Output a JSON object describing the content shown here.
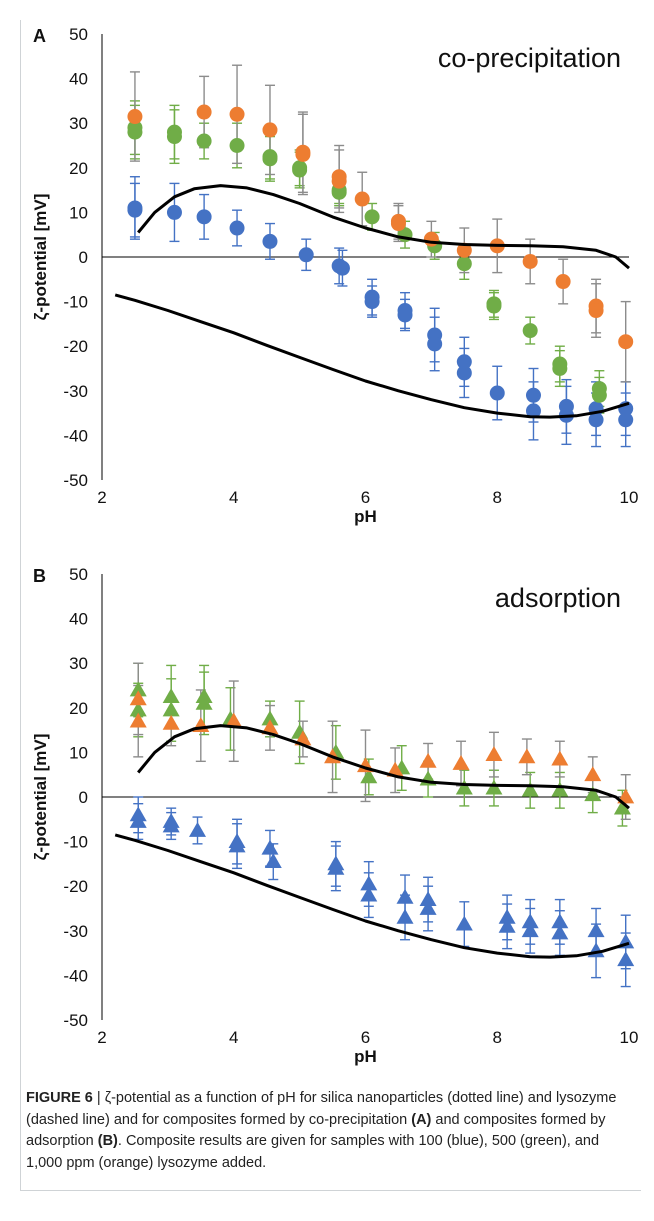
{
  "caption": {
    "lead": "FIGURE 6",
    "sep": " | ",
    "t1": "ζ-potential as a function of pH for silica nanoparticles (dotted line) and lysozyme (dashed line) and for composites formed by co-precipitation ",
    "ref_a": "(A)",
    "t2": " and composites formed by adsorption ",
    "ref_b": "(B)",
    "t3": ". Composite results are given for samples with 100 (blue), 500 (green), and 1,000 ppm (orange) lysozyme added."
  },
  "chart_data": [
    {
      "type": "scatter",
      "panel_label": "A",
      "title": "co-precipitation",
      "xlabel": "pH",
      "ylabel": "ζ-potential [mV]",
      "xlim": [
        2,
        10
      ],
      "ylim": [
        -50,
        50
      ],
      "xticks": [
        "2",
        "4",
        "6",
        "8",
        "10"
      ],
      "yticks": [
        "50",
        "40",
        "30",
        "20",
        "10",
        "0",
        "-10",
        "-20",
        "-30",
        "-40",
        "-50"
      ],
      "grid": false,
      "marker": "circle",
      "series": [
        {
          "color": "#4472c4",
          "points": [
            [
              2.5,
              11
            ],
            [
              2.5,
              10.5
            ],
            [
              3.1,
              10
            ],
            [
              3.55,
              9
            ],
            [
              4.05,
              6.5
            ],
            [
              4.55,
              3.5
            ],
            [
              5.1,
              0.5
            ],
            [
              5.6,
              -2
            ],
            [
              5.65,
              -2.5
            ],
            [
              6.1,
              -9
            ],
            [
              6.1,
              -10
            ],
            [
              6.6,
              -12
            ],
            [
              6.6,
              -13
            ],
            [
              7.05,
              -17.5
            ],
            [
              7.05,
              -19.5
            ],
            [
              7.5,
              -23.5
            ],
            [
              7.5,
              -26
            ],
            [
              8.0,
              -30.5
            ],
            [
              8.55,
              -31
            ],
            [
              8.55,
              -34.5
            ],
            [
              9.05,
              -33.5
            ],
            [
              9.05,
              -35.5
            ],
            [
              9.5,
              -34
            ],
            [
              9.5,
              -36.5
            ],
            [
              9.95,
              -34
            ],
            [
              9.95,
              -36.5
            ]
          ],
          "error": [
            7,
            6,
            6.5,
            5,
            4,
            4,
            3.5,
            4,
            4,
            4,
            3.5,
            4,
            3.5,
            6,
            6,
            5.5,
            5.5,
            6,
            6,
            6.5,
            6,
            6.5,
            6,
            6,
            6,
            6
          ]
        },
        {
          "color": "#70ad47",
          "points": [
            [
              2.5,
              29
            ],
            [
              2.5,
              28
            ],
            [
              3.1,
              28
            ],
            [
              3.1,
              27
            ],
            [
              3.55,
              26
            ],
            [
              4.05,
              25
            ],
            [
              4.55,
              22.5
            ],
            [
              4.55,
              22
            ],
            [
              5.0,
              20
            ],
            [
              5.0,
              19.5
            ],
            [
              5.6,
              15
            ],
            [
              5.6,
              14.5
            ],
            [
              6.1,
              9
            ],
            [
              6.6,
              5
            ],
            [
              7.05,
              2.5
            ],
            [
              7.5,
              -1.5
            ],
            [
              7.95,
              -10.5
            ],
            [
              7.95,
              -11
            ],
            [
              8.5,
              -16.5
            ],
            [
              8.95,
              -24
            ],
            [
              8.95,
              -25
            ],
            [
              9.55,
              -29.5
            ],
            [
              9.55,
              -31
            ]
          ],
          "error": [
            6,
            6,
            6,
            6,
            4,
            5,
            5,
            5,
            4,
            4,
            3,
            3,
            3,
            3,
            3,
            3.5,
            3,
            3,
            3,
            4,
            4,
            4,
            4
          ]
        },
        {
          "color": "#ed7d31",
          "points": [
            [
              2.5,
              31.5
            ],
            [
              3.55,
              32.5
            ],
            [
              4.05,
              32
            ],
            [
              4.55,
              28.5
            ],
            [
              5.05,
              23.5
            ],
            [
              5.05,
              23
            ],
            [
              5.6,
              18
            ],
            [
              5.6,
              17
            ],
            [
              5.95,
              13
            ],
            [
              6.5,
              8
            ],
            [
              6.5,
              7.5
            ],
            [
              7.0,
              4
            ],
            [
              7.5,
              1.5
            ],
            [
              8.0,
              2.5
            ],
            [
              8.5,
              -1
            ],
            [
              9.0,
              -5.5
            ],
            [
              9.5,
              -11
            ],
            [
              9.5,
              -12
            ],
            [
              9.95,
              -19
            ]
          ],
          "error": [
            10,
            8,
            11,
            10,
            9,
            9,
            7,
            7,
            6,
            4,
            4,
            4,
            5,
            6,
            5,
            5,
            6,
            6,
            9
          ]
        },
        {
          "color": "#000000",
          "type": "line",
          "points": [
            [
              2.55,
              5.5
            ],
            [
              2.8,
              10
            ],
            [
              3.1,
              13.5
            ],
            [
              3.4,
              15.3
            ],
            [
              3.8,
              16
            ],
            [
              4.2,
              15.5
            ],
            [
              4.6,
              14
            ],
            [
              5.0,
              12
            ],
            [
              5.5,
              9
            ],
            [
              6.0,
              6.5
            ],
            [
              6.5,
              4.5
            ],
            [
              7.0,
              3.3
            ],
            [
              7.5,
              2.8
            ],
            [
              8.0,
              2.6
            ],
            [
              8.5,
              2.5
            ],
            [
              9.0,
              2.3
            ],
            [
              9.5,
              1.5
            ],
            [
              9.8,
              0
            ],
            [
              10.0,
              -2.5
            ]
          ]
        },
        {
          "color": "#000000",
          "type": "line",
          "points": [
            [
              2.2,
              -8.5
            ],
            [
              2.5,
              -9.7
            ],
            [
              3.0,
              -12
            ],
            [
              3.5,
              -14.5
            ],
            [
              4.0,
              -17
            ],
            [
              4.5,
              -19.8
            ],
            [
              5.0,
              -22.5
            ],
            [
              5.5,
              -25.2
            ],
            [
              6.0,
              -27.8
            ],
            [
              6.5,
              -30
            ],
            [
              7.0,
              -32
            ],
            [
              7.5,
              -33.8
            ],
            [
              8.0,
              -35
            ],
            [
              8.5,
              -35.8
            ],
            [
              8.8,
              -35.9
            ],
            [
              9.2,
              -35.6
            ],
            [
              9.6,
              -34.6
            ],
            [
              10.0,
              -32.8
            ]
          ]
        }
      ]
    },
    {
      "type": "scatter",
      "panel_label": "B",
      "title": "adsorption",
      "xlabel": "pH",
      "ylabel": "ζ-potential [mV]",
      "xlim": [
        2,
        10
      ],
      "ylim": [
        -50,
        50
      ],
      "xticks": [
        "2",
        "4",
        "6",
        "8",
        "10"
      ],
      "yticks": [
        "50",
        "40",
        "30",
        "20",
        "10",
        "0",
        "-10",
        "-20",
        "-30",
        "-40",
        "-50"
      ],
      "grid": false,
      "marker": "triangle",
      "series": [
        {
          "color": "#4472c4",
          "points": [
            [
              2.55,
              -4
            ],
            [
              2.55,
              -5.5
            ],
            [
              3.05,
              -5.5
            ],
            [
              3.05,
              -6.5
            ],
            [
              3.45,
              -7.5
            ],
            [
              4.05,
              -10
            ],
            [
              4.05,
              -11
            ],
            [
              4.55,
              -11.5
            ],
            [
              4.6,
              -14.5
            ],
            [
              5.55,
              -15
            ],
            [
              5.55,
              -16
            ],
            [
              6.05,
              -19.5
            ],
            [
              6.05,
              -22
            ],
            [
              6.6,
              -22.5
            ],
            [
              6.6,
              -27
            ],
            [
              6.95,
              -23
            ],
            [
              6.95,
              -25
            ],
            [
              7.5,
              -28.5
            ],
            [
              8.15,
              -27
            ],
            [
              8.15,
              -29
            ],
            [
              8.5,
              -28
            ],
            [
              8.5,
              -30
            ],
            [
              8.95,
              -28
            ],
            [
              8.95,
              -30.5
            ],
            [
              9.5,
              -30
            ],
            [
              9.5,
              -34.5
            ],
            [
              9.95,
              -32.5
            ],
            [
              9.95,
              -36.5
            ]
          ],
          "error": [
            4,
            4,
            3,
            3,
            3,
            5,
            5,
            4,
            4,
            5,
            5,
            5,
            5,
            5,
            5,
            5,
            5,
            5,
            5,
            5,
            5,
            5,
            5,
            5,
            5,
            6,
            6,
            6
          ]
        },
        {
          "color": "#70ad47",
          "points": [
            [
              2.55,
              24
            ],
            [
              2.55,
              19.5
            ],
            [
              3.05,
              22.5
            ],
            [
              3.05,
              19.5
            ],
            [
              3.55,
              22.5
            ],
            [
              3.55,
              21
            ],
            [
              3.95,
              17.5
            ],
            [
              4.55,
              17.5
            ],
            [
              5.0,
              14.5
            ],
            [
              5.55,
              10
            ],
            [
              6.05,
              4.5
            ],
            [
              6.55,
              6.5
            ],
            [
              6.95,
              4
            ],
            [
              7.5,
              2
            ],
            [
              7.95,
              2
            ],
            [
              8.5,
              1.5
            ],
            [
              8.95,
              1.5
            ],
            [
              9.45,
              0.5
            ],
            [
              9.9,
              -2.5
            ]
          ],
          "error": [
            6,
            6,
            7,
            7,
            7,
            7,
            7,
            4,
            7,
            6,
            4,
            5,
            4,
            4,
            4,
            4,
            4,
            4,
            4
          ]
        },
        {
          "color": "#ed7d31",
          "points": [
            [
              2.55,
              22
            ],
            [
              2.55,
              17
            ],
            [
              3.05,
              16.5
            ],
            [
              3.5,
              16
            ],
            [
              4.0,
              17
            ],
            [
              4.55,
              15.5
            ],
            [
              5.05,
              13
            ],
            [
              5.5,
              9
            ],
            [
              6.0,
              7
            ],
            [
              6.45,
              6
            ],
            [
              6.95,
              8
            ],
            [
              7.45,
              7.5
            ],
            [
              7.95,
              9.5
            ],
            [
              8.45,
              9
            ],
            [
              8.95,
              8.5
            ],
            [
              9.45,
              5
            ],
            [
              9.95,
              0
            ]
          ],
          "error": [
            8,
            8,
            5,
            8,
            9,
            5,
            4,
            8,
            8,
            5,
            4,
            5,
            5,
            4,
            4,
            4,
            5
          ]
        },
        {
          "color": "#000000",
          "type": "line",
          "points": [
            [
              2.55,
              5.5
            ],
            [
              2.8,
              10
            ],
            [
              3.1,
              13.5
            ],
            [
              3.4,
              15.3
            ],
            [
              3.8,
              16
            ],
            [
              4.2,
              15.5
            ],
            [
              4.6,
              14
            ],
            [
              5.0,
              12
            ],
            [
              5.5,
              9
            ],
            [
              6.0,
              6.5
            ],
            [
              6.5,
              4.5
            ],
            [
              7.0,
              3.3
            ],
            [
              7.5,
              2.8
            ],
            [
              8.0,
              2.6
            ],
            [
              8.5,
              2.5
            ],
            [
              9.0,
              2.3
            ],
            [
              9.5,
              1.5
            ],
            [
              9.8,
              0
            ],
            [
              10.0,
              -2.5
            ]
          ]
        },
        {
          "color": "#000000",
          "type": "line",
          "points": [
            [
              2.2,
              -8.5
            ],
            [
              2.5,
              -9.7
            ],
            [
              3.0,
              -12
            ],
            [
              3.5,
              -14.5
            ],
            [
              4.0,
              -17
            ],
            [
              4.5,
              -19.8
            ],
            [
              5.0,
              -22.5
            ],
            [
              5.5,
              -25.2
            ],
            [
              6.0,
              -27.8
            ],
            [
              6.5,
              -30
            ],
            [
              7.0,
              -32
            ],
            [
              7.5,
              -33.8
            ],
            [
              8.0,
              -35
            ],
            [
              8.5,
              -35.8
            ],
            [
              8.8,
              -35.9
            ],
            [
              9.2,
              -35.6
            ],
            [
              9.6,
              -34.6
            ],
            [
              10.0,
              -32.8
            ]
          ]
        }
      ]
    }
  ]
}
